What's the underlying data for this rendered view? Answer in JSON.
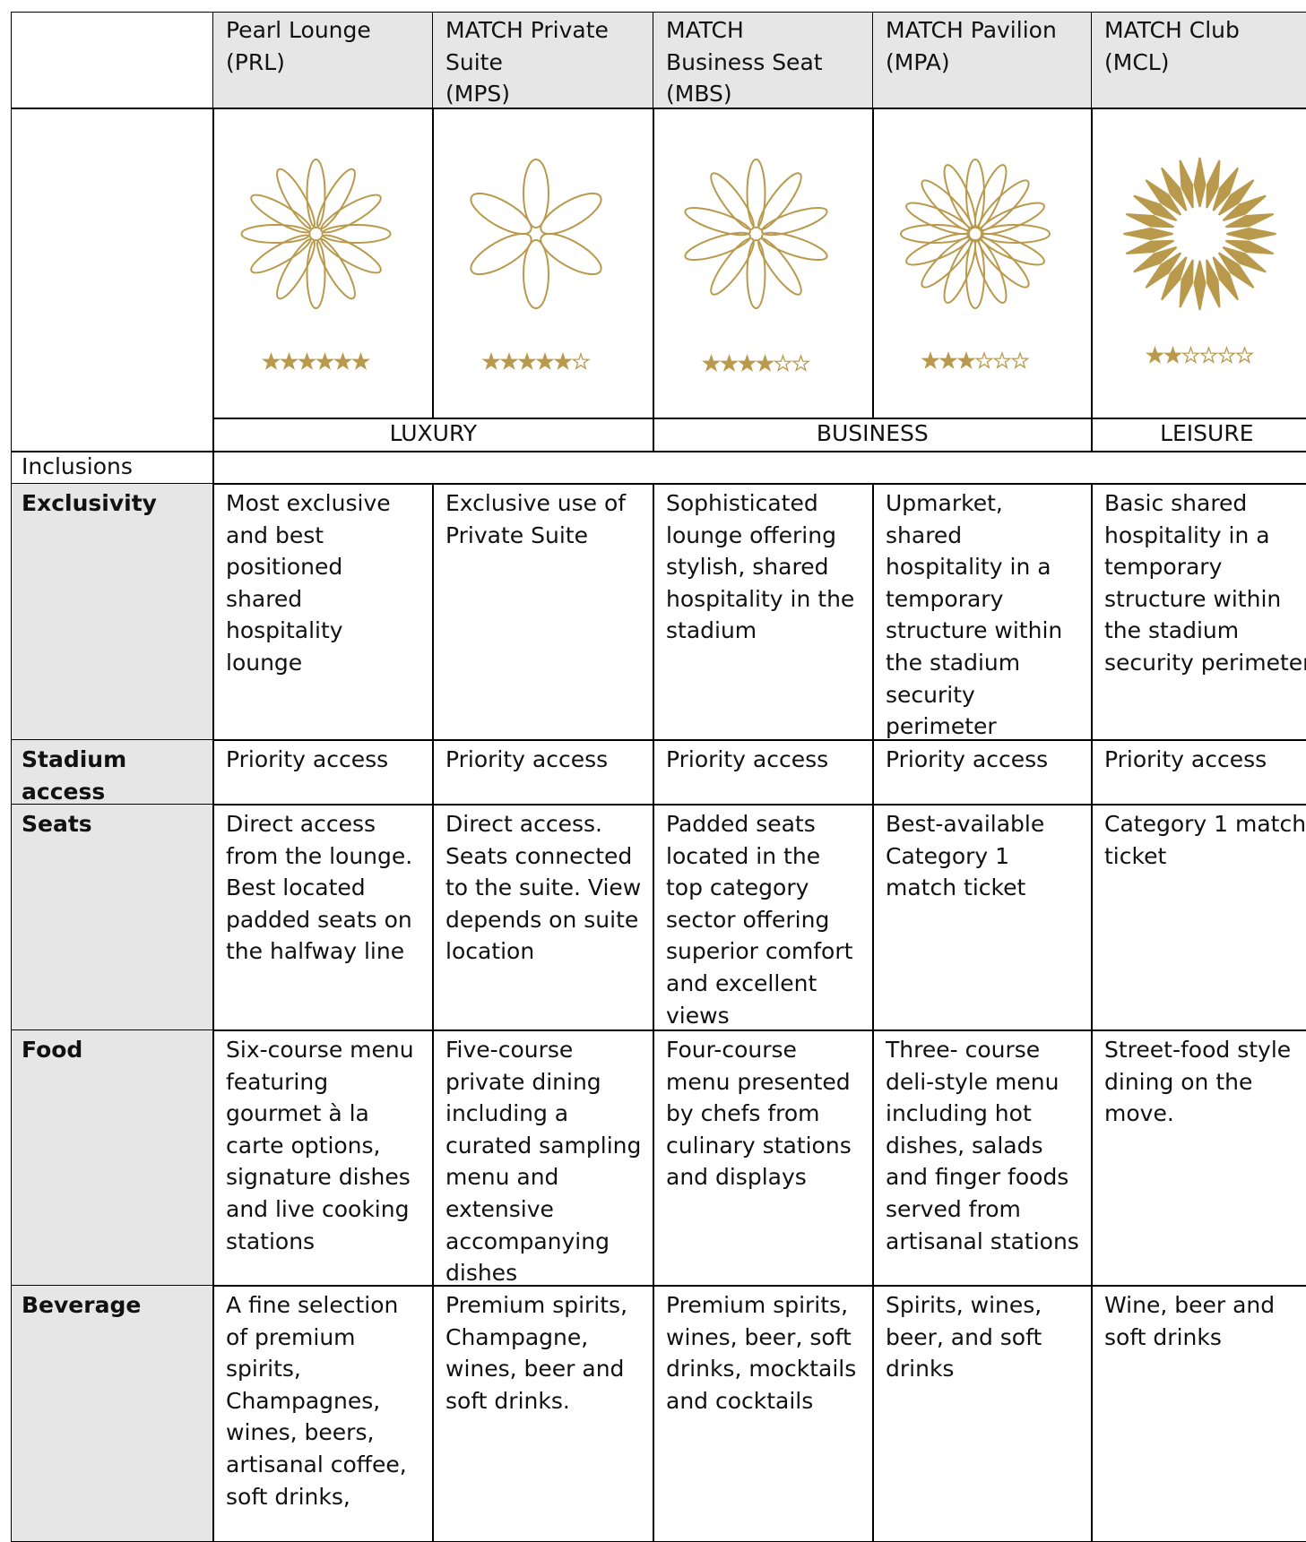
{
  "header": {
    "columns": [
      "Pearl Lounge\n(PRL)",
      "MATCH Private\nSuite\n(MPS)",
      "MATCH\nBusiness Seat\n(MBS)",
      "MATCH Pavilion\n(MPA)",
      "MATCH Club\n(MCL)"
    ]
  },
  "ratings": {
    "values": [
      6,
      5,
      4,
      3,
      2
    ],
    "max": 6
  },
  "tiers": [
    "LUXURY",
    "BUSINESS",
    "LEISURE"
  ],
  "section": "Inclusions",
  "rows": [
    {
      "label": "Exclusivity",
      "cells": [
        "Most exclusive and best positioned shared hospitality lounge",
        "Exclusive use of Private Suite",
        "Sophisticated lounge offering stylish, shared hospitality in the stadium",
        "Upmarket, shared hospitality in a temporary structure within the stadium security perimeter",
        "Basic shared hospitality in a temporary structure within the stadium security perimeter"
      ]
    },
    {
      "label": "Stadium access",
      "cells": [
        "Priority access",
        "Priority access",
        "Priority access",
        "Priority access",
        "Priority access"
      ]
    },
    {
      "label": "Seats",
      "cells": [
        "Direct access from the lounge. Best located padded seats on the halfway line",
        "Direct access. Seats connected to the suite. View depends on suite location",
        "Padded seats located in the top category sector offering superior comfort and excellent views",
        "Best-available Category 1 match ticket",
        "Category 1 match ticket"
      ]
    },
    {
      "label": "Food",
      "cells": [
        "Six-course menu featuring gourmet à la carte options, signature dishes and live cooking stations",
        "Five-course private dining including a curated sampling menu and extensive accompanying dishes",
        "Four-course menu presented by chefs from culinary stations and displays",
        "Three- course deli-style menu including hot dishes, salads and finger foods served from artisanal stations",
        "Street-food style dining on the move."
      ]
    },
    {
      "label": "Beverage",
      "cells": [
        "A fine selection of premium spirits, Champagnes, wines, beers, artisanal coffee, soft drinks,",
        "Premium spirits, Champagne, wines, beer and soft drinks.",
        "Premium spirits, wines, beer, soft drinks, mocktails and cocktails",
        "Spirits, wines, beer, and soft drinks",
        "Wine, beer and soft drinks"
      ]
    }
  ]
}
